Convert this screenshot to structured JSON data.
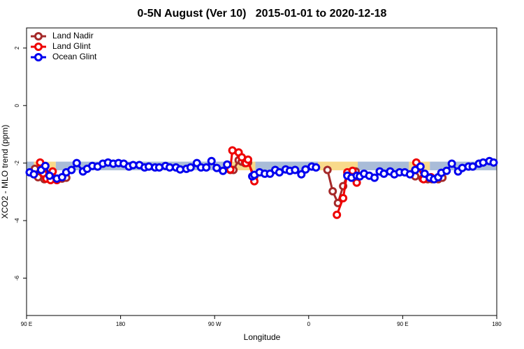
{
  "chart_data": {
    "type": "line",
    "title": "0-5N August (Ver 10)   2015-01-01 to 2020-12-18",
    "x_label": "Longitude",
    "y_label": "XCO2 - MLO trend (ppm)",
    "xlim": [
      90,
      540
    ],
    "ylim": [
      -7.3,
      2.7
    ],
    "xticks": [
      {
        "value": 90,
        "label": "90 E"
      },
      180,
      {
        "value": 270,
        "label": "90 W"
      },
      {
        "value": 360,
        "label": "0"
      },
      {
        "value": 450,
        "label": "90 E"
      },
      {
        "value": 540,
        "label": "180"
      }
    ],
    "yticks": [
      2,
      0,
      -2,
      -4,
      -6
    ],
    "legend": "top-left",
    "band_y": [
      -2.25,
      -1.95
    ],
    "bands": [
      {
        "color": "#a9bcd8",
        "x": [
          90,
          97
        ]
      },
      {
        "color": "#f8d98a",
        "x": [
          97,
          118
        ]
      },
      {
        "color": "#a9bcd8",
        "x": [
          118,
          285
        ]
      },
      {
        "color": "#f8d98a",
        "x": [
          285,
          309
        ]
      },
      {
        "color": "#a9bcd8",
        "x": [
          309,
          369
        ]
      },
      {
        "color": "#f8d98a",
        "x": [
          369,
          407
        ]
      },
      {
        "color": "#a9bcd8",
        "x": [
          407,
          456
        ]
      },
      {
        "color": "#f8d98a",
        "x": [
          456,
          476
        ]
      },
      {
        "color": "#a9bcd8",
        "x": [
          476,
          540
        ]
      }
    ],
    "series": [
      {
        "name": "Land Nadir",
        "color": "#a52a2a",
        "x": [
          98,
          101,
          107,
          114,
          124,
          128,
          null,
          285,
          288,
          293,
          296,
          299,
          302,
          308,
          null,
          378,
          383,
          388,
          393,
          397,
          401,
          405,
          null,
          462,
          469,
          474,
          478,
          484,
          488
        ],
        "values": [
          -2.2,
          -2.49,
          -2.56,
          -2.44,
          -2.54,
          -2.51,
          null,
          -2.24,
          -2.24,
          -1.9,
          -1.95,
          -2.0,
          -1.98,
          -2.46,
          null,
          -2.24,
          -2.98,
          -3.39,
          -2.8,
          -2.41,
          -2.37,
          -2.29,
          null,
          -2.46,
          -2.54,
          -2.56,
          -2.56,
          -2.56,
          -2.51
        ]
      },
      {
        "name": "Land Glint",
        "color": "#ee0000",
        "x": [
          103,
          106,
          109,
          113,
          115,
          119,
          null,
          285,
          287,
          293,
          296,
          300,
          302,
          308,
          null,
          387,
          393,
          397,
          402,
          406,
          null,
          463,
          470,
          477
        ],
        "values": [
          -1.98,
          -2.36,
          -2.54,
          -2.59,
          -2.29,
          -2.59,
          null,
          -2.22,
          -1.56,
          -1.63,
          -1.8,
          -2.0,
          -1.88,
          -2.63,
          null,
          -3.8,
          -3.22,
          -2.32,
          -2.27,
          -2.68,
          null,
          -1.98,
          -2.56,
          -2.49
        ]
      },
      {
        "name": "Ocean Glint",
        "color": "#0000ee",
        "x": [
          93,
          97,
          104,
          108,
          112,
          119,
          124,
          128,
          133,
          138,
          144,
          148,
          153,
          158,
          163,
          168,
          173,
          178,
          183,
          188,
          192,
          198,
          203,
          207,
          213,
          217,
          223,
          227,
          233,
          237,
          243,
          247,
          253,
          257,
          262,
          267,
          272,
          278,
          282,
          null,
          306,
          308,
          313,
          318,
          323,
          328,
          332,
          338,
          342,
          347,
          353,
          357,
          363,
          367,
          null,
          397,
          401,
          406,
          409,
          413,
          418,
          423,
          428,
          432,
          438,
          442,
          447,
          452,
          457,
          462,
          467,
          471,
          476,
          480,
          484,
          487,
          492,
          497,
          503,
          507,
          513,
          517,
          523,
          527,
          533,
          537
        ],
        "values": [
          -2.32,
          -2.39,
          -2.24,
          -2.1,
          -2.44,
          -2.54,
          -2.49,
          -2.32,
          -2.24,
          -2.0,
          -2.29,
          -2.2,
          -2.1,
          -2.12,
          -2.02,
          -1.98,
          -2.02,
          -2.0,
          -2.02,
          -2.12,
          -2.07,
          -2.07,
          -2.15,
          -2.12,
          -2.15,
          -2.15,
          -2.1,
          -2.15,
          -2.15,
          -2.22,
          -2.2,
          -2.15,
          -2.0,
          -2.15,
          -2.15,
          -1.93,
          -2.17,
          -2.27,
          -2.05,
          null,
          -2.46,
          -2.41,
          -2.32,
          -2.37,
          -2.37,
          -2.24,
          -2.32,
          -2.22,
          -2.27,
          -2.24,
          -2.39,
          -2.22,
          -2.12,
          -2.15,
          null,
          -2.44,
          -2.51,
          -2.44,
          -2.46,
          -2.37,
          -2.44,
          -2.51,
          -2.29,
          -2.37,
          -2.29,
          -2.39,
          -2.32,
          -2.32,
          -2.39,
          -2.24,
          -2.12,
          -2.37,
          -2.51,
          -2.56,
          -2.49,
          -2.34,
          -2.27,
          -2.02,
          -2.29,
          -2.17,
          -2.12,
          -2.12,
          -2.02,
          -1.98,
          -1.93,
          -1.98
        ]
      }
    ]
  }
}
